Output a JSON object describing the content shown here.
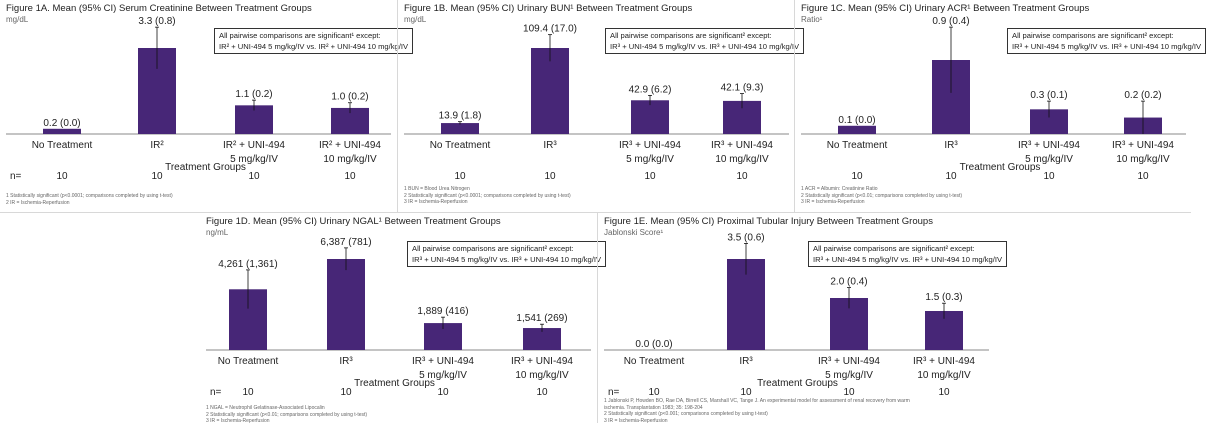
{
  "colors": {
    "bar": "#472677",
    "axis": "#888888",
    "text": "#222222"
  },
  "chart_data": [
    {
      "id": "1A",
      "type": "bar",
      "title": "Figure 1A. Mean (95% CI) Serum Creatinine Between Treatment Groups",
      "unit": "mg/dL",
      "xlabel": "Treatment Groups",
      "categories": [
        "No Treatment",
        "IR²",
        "IR² + UNI-494",
        "IR² + UNI-494"
      ],
      "subcategories": [
        "",
        "",
        "5 mg/kg/IV",
        "10 mg/kg/IV"
      ],
      "values": [
        0.2,
        3.3,
        1.1,
        1.0
      ],
      "ci": [
        0.0,
        0.8,
        0.2,
        0.2
      ],
      "value_labels": [
        "0.2 (0.0)",
        "3.3 (0.8)",
        "1.1 (0.2)",
        "1.0 (0.2)"
      ],
      "n_label": "n=",
      "n": [
        "10",
        "10",
        "10",
        "10"
      ],
      "callout": [
        "All pairwise comparisons are significant¹ except:",
        "IR² + UNI-494 5 mg/kg/IV vs. IR² + UNI-494 10 mg/kg/IV"
      ],
      "footnotes": [
        "1 Statistically significant (p<0.0001; comparisons completed by using t-test)",
        "2 IR = Ischemia-Reperfusion"
      ]
    },
    {
      "id": "1B",
      "type": "bar",
      "title": "Figure 1B. Mean (95% CI) Urinary BUN¹ Between Treatment Groups",
      "unit": "mg/dL",
      "xlabel": "",
      "categories": [
        "No Treatment",
        "IR³",
        "IR³ + UNI-494",
        "IR³ + UNI-494"
      ],
      "subcategories": [
        "",
        "",
        "5 mg/kg/IV",
        "10 mg/kg/IV"
      ],
      "values": [
        13.9,
        109.4,
        42.9,
        42.1
      ],
      "ci": [
        1.8,
        17.0,
        6.2,
        9.3
      ],
      "value_labels": [
        "13.9 (1.8)",
        "109.4 (17.0)",
        "42.9 (6.2)",
        "42.1 (9.3)"
      ],
      "n_label": "",
      "n": [
        "10",
        "10",
        "10",
        "10"
      ],
      "callout": [
        "All pairwise comparisons are significant² except:",
        "IR³ + UNI-494 5 mg/kg/IV vs. IR³ + UNI-494 10 mg/kg/IV"
      ],
      "footnotes": [
        "1 BUN = Blood Urea Nitrogen",
        "2 Statistically significant (p<0.0001; comparisons completed by using t-test)",
        "3 IR = Ischemia-Reperfusion"
      ]
    },
    {
      "id": "1C",
      "type": "bar",
      "title": "Figure 1C. Mean (95% CI) Urinary ACR¹ Between Treatment Groups",
      "unit": "Ratio¹",
      "xlabel": "Treatment Groups",
      "categories": [
        "No Treatment",
        "IR³",
        "IR³ + UNI-494",
        "IR³ + UNI-494"
      ],
      "subcategories": [
        "",
        "",
        "5 mg/kg/IV",
        "10 mg/kg/IV"
      ],
      "values": [
        0.1,
        0.9,
        0.3,
        0.2
      ],
      "ci": [
        0.0,
        0.4,
        0.1,
        0.2
      ],
      "value_labels": [
        "0.1 (0.0)",
        "0.9 (0.4)",
        "0.3 (0.1)",
        "0.2 (0.2)"
      ],
      "n_label": "",
      "n": [
        "10",
        "10",
        "10",
        "10"
      ],
      "callout": [
        "All pairwise comparisons are significant² except:",
        "IR³ + UNI-494 5 mg/kg/IV vs. IR³ + UNI-494 10 mg/kg/IV"
      ],
      "footnotes": [
        "1 ACR = Albumin: Creatinine Ratio",
        "2 Statistically significant (p<0.01; comparisons completed by using t-test)",
        "3 IR = Ischemia-Reperfusion"
      ]
    },
    {
      "id": "1D",
      "type": "bar",
      "title": "Figure 1D. Mean (95% CI) Urinary NGAL¹ Between Treatment Groups",
      "unit": "ng/mL",
      "xlabel": "Treatment Groups",
      "categories": [
        "No Treatment",
        "IR³",
        "IR³ + UNI-494",
        "IR³ + UNI-494"
      ],
      "subcategories": [
        "",
        "",
        "5 mg/kg/IV",
        "10 mg/kg/IV"
      ],
      "values": [
        4261,
        6387,
        1889,
        1541
      ],
      "ci": [
        1361,
        781,
        416,
        269
      ],
      "value_labels": [
        "4,261 (1,361)",
        "6,387 (781)",
        "1,889 (416)",
        "1,541 (269)"
      ],
      "n_label": "n=",
      "n": [
        "10",
        "10",
        "10",
        "10"
      ],
      "callout": [
        "All pairwise comparisons are significant² except:",
        "IR³ + UNI-494 5 mg/kg/IV vs. IR³ + UNI-494 10 mg/kg/IV"
      ],
      "footnotes": [
        "1 NGAL = Neutrophil Gelatinase-Associated Lipocalin",
        "2 Statistically significant (p<0.01; comparisons completed by using t-test)",
        "3 IR = Ischemia-Reperfusion"
      ]
    },
    {
      "id": "1E",
      "type": "bar",
      "title": "Figure 1E. Mean (95% CI) Proximal Tubular Injury Between Treatment Groups",
      "unit": "Jablonski Score¹",
      "xlabel": "Treatment Groups",
      "categories": [
        "No Treatment",
        "IR³",
        "IR³ + UNI-494",
        "IR³ + UNI-494"
      ],
      "subcategories": [
        "",
        "",
        "5 mg/kg/IV",
        "10 mg/kg/IV"
      ],
      "values": [
        0.0,
        3.5,
        2.0,
        1.5
      ],
      "ci": [
        0.0,
        0.6,
        0.4,
        0.3
      ],
      "value_labels": [
        "0.0 (0.0)",
        "3.5 (0.6)",
        "2.0 (0.4)",
        "1.5 (0.3)"
      ],
      "n_label": "n=",
      "n": [
        "10",
        "10",
        "10",
        "10"
      ],
      "callout": [
        "All pairwise comparisons are significant² except:",
        "IR³ + UNI-494 5 mg/kg/IV vs. IR³ + UNI-494 10 mg/kg/IV"
      ],
      "footnotes": [
        "1 Jablonski P, Howden BO, Rae DA, Birrell CS, Marshall VC, Tange J. An experimental model for assessment of renal recovery from warm",
        "   ischemia. Transplantation 1983; 35: 198-204",
        "2 Statistically significant (p<0.001; comparisons completed by using t-test)",
        "3 IR = Ischemia-Reperfusion"
      ]
    }
  ]
}
